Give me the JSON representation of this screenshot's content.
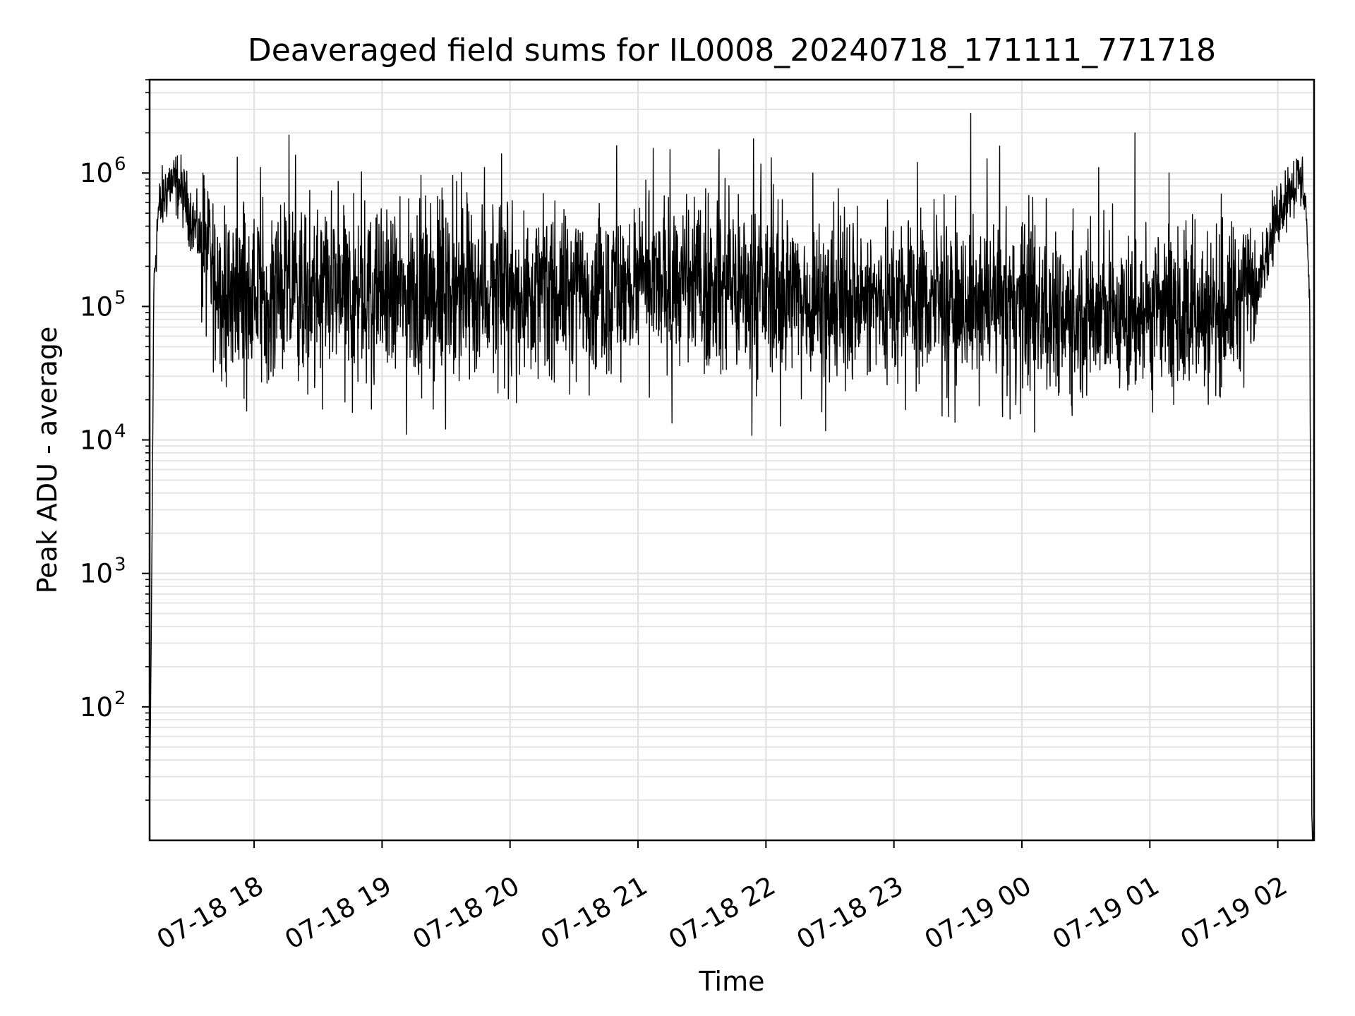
{
  "chart_data": {
    "type": "line",
    "title": "Deaveraged field sums for IL0008_20240718_171111_771718",
    "xlabel": "Time",
    "ylabel": "Peak ADU - average",
    "yscale": "log",
    "grid": true,
    "legend": "none",
    "line_color": "#000000",
    "xlim": [
      "2024-07-18 17:11",
      "2024-07-19 02:17"
    ],
    "ylim": [
      10,
      5000000
    ],
    "x_ticks": [
      "07-18 18",
      "07-18 19",
      "07-18 20",
      "07-18 21",
      "07-18 22",
      "07-18 23",
      "07-19 00",
      "07-19 01",
      "07-19 02"
    ],
    "x_tick_times": [
      "2024-07-18 18:00",
      "2024-07-18 19:00",
      "2024-07-18 20:00",
      "2024-07-18 21:00",
      "2024-07-18 22:00",
      "2024-07-18 23:00",
      "2024-07-19 00:00",
      "2024-07-19 01:00",
      "2024-07-19 02:00"
    ],
    "y_ticks": [
      {
        "base": "10",
        "exp": "2",
        "value": 100
      },
      {
        "base": "10",
        "exp": "3",
        "value": 1000
      },
      {
        "base": "10",
        "exp": "4",
        "value": 10000
      },
      {
        "base": "10",
        "exp": "5",
        "value": 100000
      },
      {
        "base": "10",
        "exp": "6",
        "value": 1000000
      }
    ],
    "series": [
      {
        "x": [
          "2024-07-18 17:11",
          "2024-07-18 17:12",
          "2024-07-18 17:13",
          "2024-07-18 17:15",
          "2024-07-18 17:20",
          "2024-07-18 17:25",
          "2024-07-18 17:30",
          "2024-07-18 17:35",
          "2024-07-18 17:40",
          "2024-07-18 17:45",
          "2024-07-18 18:00",
          "2024-07-18 18:30",
          "2024-07-18 19:00",
          "2024-07-18 19:30",
          "2024-07-18 20:00",
          "2024-07-18 20:30",
          "2024-07-18 21:00",
          "2024-07-18 21:30",
          "2024-07-18 22:00",
          "2024-07-18 22:30",
          "2024-07-18 23:00",
          "2024-07-18 23:30",
          "2024-07-19 00:00",
          "2024-07-19 00:30",
          "2024-07-19 01:00",
          "2024-07-19 01:30",
          "2024-07-19 01:45",
          "2024-07-19 01:55",
          "2024-07-19 02:00",
          "2024-07-19 02:05",
          "2024-07-19 02:10",
          "2024-07-19 02:13",
          "2024-07-19 02:15",
          "2024-07-19 02:16"
        ],
        "y": [
          12,
          1000,
          150000,
          500000,
          850000,
          800000,
          500000,
          300000,
          180000,
          130000,
          120000,
          125000,
          120000,
          120000,
          130000,
          130000,
          140000,
          140000,
          125000,
          110000,
          110000,
          105000,
          100000,
          85000,
          85000,
          90000,
          120000,
          250000,
          500000,
          750000,
          900000,
          700000,
          100000,
          10
        ]
      }
    ],
    "spikes": [
      {
        "x": "2024-07-18 18:03",
        "y": 1100000
      },
      {
        "x": "2024-07-18 19:48",
        "y": 1100000
      },
      {
        "x": "2024-07-18 20:50",
        "y": 1600000
      },
      {
        "x": "2024-07-18 21:15",
        "y": 1500000
      },
      {
        "x": "2024-07-18 21:38",
        "y": 1500000
      },
      {
        "x": "2024-07-18 22:22",
        "y": 1000000
      },
      {
        "x": "2024-07-18 23:11",
        "y": 1200000
      },
      {
        "x": "2024-07-18 23:36",
        "y": 2800000
      },
      {
        "x": "2024-07-19 00:36",
        "y": 1100000
      },
      {
        "x": "2024-07-19 00:53",
        "y": 2000000
      },
      {
        "x": "2024-07-19 01:09",
        "y": 1000000
      }
    ],
    "dips": [
      {
        "x": "2024-07-18 18:32",
        "y": 17000
      },
      {
        "x": "2024-07-18 18:55",
        "y": 17000
      },
      {
        "x": "2024-07-18 19:24",
        "y": 17000
      },
      {
        "x": "2024-07-18 20:03",
        "y": 19000
      },
      {
        "x": "2024-07-18 20:28",
        "y": 22000
      },
      {
        "x": "2024-07-18 23:40",
        "y": 18000
      }
    ]
  }
}
